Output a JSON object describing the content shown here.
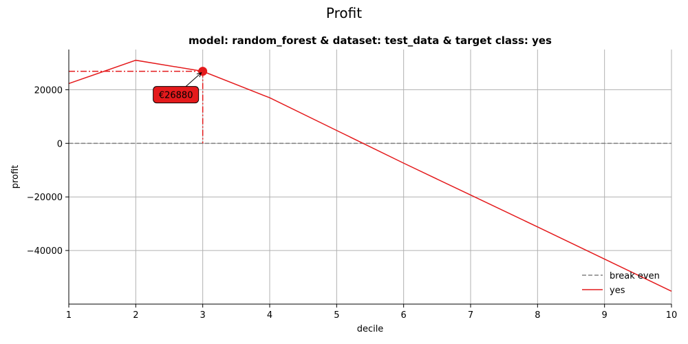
{
  "suptitle": "Profit",
  "chart_data": {
    "type": "line",
    "title": "model: random_forest & dataset: test_data & target class: yes",
    "xlabel": "decile",
    "ylabel": "profit",
    "xlim": [
      1,
      10
    ],
    "ylim": [
      -60000,
      35000
    ],
    "x_ticks": [
      1,
      2,
      3,
      4,
      5,
      6,
      7,
      8,
      9,
      10
    ],
    "x_tick_labels": [
      "1",
      "2",
      "3",
      "4",
      "5",
      "6",
      "7",
      "8",
      "9",
      "10"
    ],
    "y_ticks": [
      -40000,
      -20000,
      0,
      20000
    ],
    "y_tick_labels": [
      "−40000",
      "−20000",
      "0",
      "20000"
    ],
    "grid": true,
    "legend_position": "lower-right",
    "series": [
      {
        "name": "break even",
        "style": "dashed",
        "color": "#808080",
        "x": [
          1,
          10
        ],
        "y": [
          0,
          0
        ]
      },
      {
        "name": "yes",
        "style": "solid",
        "color": "#e41a1c",
        "x": [
          1,
          2,
          3,
          4,
          5,
          6,
          7,
          8,
          9,
          10
        ],
        "y": [
          22300,
          31000,
          26880,
          17000,
          4800,
          -7400,
          -19300,
          -31200,
          -43200,
          -55200
        ]
      }
    ],
    "highlight": {
      "x": 3,
      "y": 26880,
      "label": "€26880",
      "color": "#e41a1c"
    }
  }
}
